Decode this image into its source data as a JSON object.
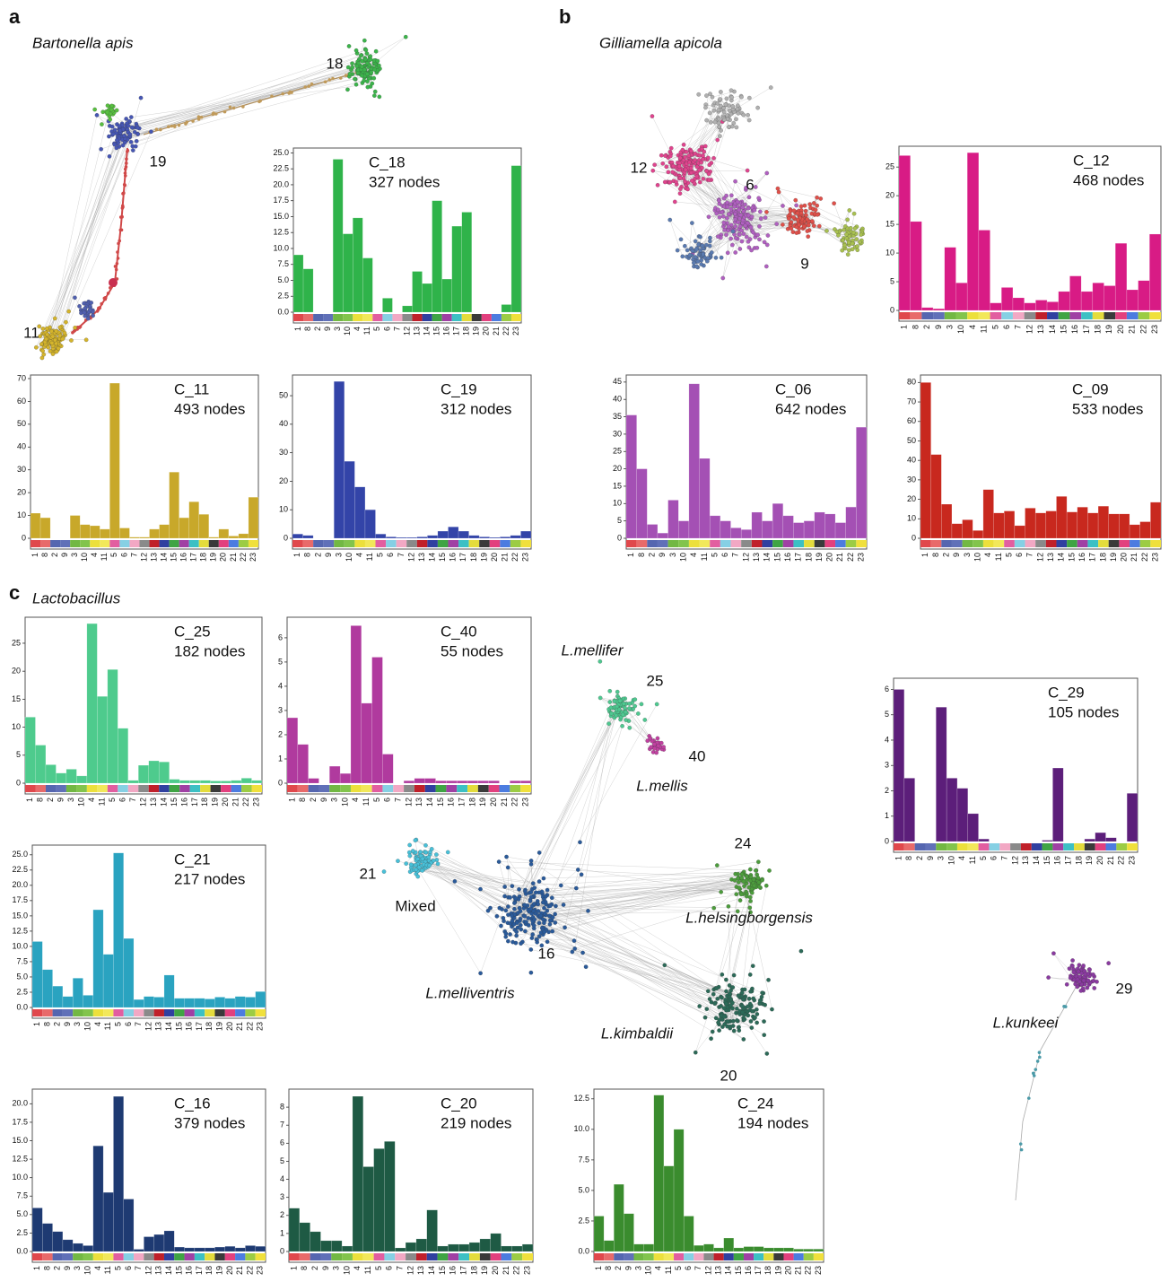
{
  "panels": [
    {
      "letter": "a",
      "title": "Bartonella apis",
      "labels": [
        "18",
        "19",
        "11"
      ]
    },
    {
      "letter": "b",
      "title": "Gilliamella apicola",
      "labels": [
        "12",
        "6",
        "9"
      ]
    },
    {
      "letter": "c",
      "title": "Lactobacillus",
      "labels": [
        "L.mellifer",
        "25",
        "40",
        "L.mellis",
        "24",
        "21",
        "Mixed",
        "L.helsingborgensis",
        "16",
        "L.melliventris",
        "L.kimbaldii",
        "20",
        "L.kunkeei",
        "29"
      ]
    }
  ],
  "category_colors": [
    "#e0484c",
    "#e86a6a",
    "#5566b0",
    "#6070b8",
    "#72b843",
    "#82c44c",
    "#ece03c",
    "#f2e85a",
    "#e25ea0",
    "#86d0e4",
    "#f2a8c4",
    "#8a8a8a",
    "#c0202a",
    "#3040a0",
    "#3fa444",
    "#a040a4",
    "#3cc0c4",
    "#e4dc3c",
    "#3a3a3a",
    "#e2407e",
    "#4c7ce0",
    "#9ccc44",
    "#f0e03c"
  ],
  "chart_data": [
    {
      "type": "bar",
      "title": "C_18",
      "subtitle": "327 nodes",
      "color": "#2fb34a",
      "categories": [
        "1",
        "8",
        "2",
        "9",
        "3",
        "10",
        "4",
        "11",
        "5",
        "6",
        "7",
        "12",
        "13",
        "14",
        "15",
        "16",
        "17",
        "18",
        "19",
        "20",
        "21",
        "22",
        "23"
      ],
      "values": [
        9,
        6.8,
        0,
        0,
        24,
        12.3,
        14.8,
        8.5,
        0,
        2.2,
        0,
        1,
        6.4,
        4.5,
        17.5,
        5.2,
        13.5,
        15.7,
        0,
        0,
        0,
        1.2,
        23
      ],
      "ylim": [
        0,
        25.2
      ],
      "yticks": [
        {
          "value": 0,
          "label": "0.0"
        },
        2.5,
        {
          "value": 5,
          "label": "5.0"
        },
        7.5,
        {
          "value": 10,
          "label": "10.0"
        },
        12.5,
        {
          "value": 15,
          "label": "15.0"
        },
        17.5,
        {
          "value": 20,
          "label": "20.0"
        },
        22.5,
        {
          "value": 25,
          "label": "25.0"
        }
      ]
    },
    {
      "type": "bar",
      "title": "C_11",
      "subtitle": "493 nodes",
      "color": "#c8a82a",
      "categories": [
        "1",
        "8",
        "2",
        "9",
        "3",
        "10",
        "4",
        "11",
        "5",
        "6",
        "7",
        "12",
        "13",
        "14",
        "15",
        "16",
        "17",
        "18",
        "19",
        "20",
        "21",
        "22",
        "23"
      ],
      "values": [
        11,
        9,
        0,
        0,
        10,
        6,
        5.5,
        4,
        68,
        4.5,
        0.5,
        0.5,
        4,
        6,
        29,
        9,
        16,
        10.5,
        0.5,
        4,
        1,
        2,
        18
      ],
      "ylim": [
        0,
        70
      ],
      "yticks": [
        0,
        10,
        20,
        30,
        40,
        50,
        60,
        70
      ]
    },
    {
      "type": "bar",
      "title": "C_19",
      "subtitle": "312 nodes",
      "color": "#3344a8",
      "categories": [
        "1",
        "8",
        "2",
        "9",
        "3",
        "10",
        "4",
        "11",
        "5",
        "6",
        "7",
        "12",
        "13",
        "14",
        "15",
        "16",
        "17",
        "18",
        "19",
        "20",
        "21",
        "22",
        "23"
      ],
      "values": [
        1.5,
        1,
        0,
        0,
        55,
        27,
        18,
        10,
        1.5,
        0.5,
        0.3,
        0.3,
        0.5,
        1,
        2.5,
        4,
        2.5,
        1,
        0.5,
        0.3,
        0.5,
        1,
        2.5
      ],
      "ylim": [
        0,
        56
      ],
      "yticks": [
        0,
        10,
        20,
        30,
        40,
        50
      ]
    },
    {
      "type": "bar",
      "title": "C_12",
      "subtitle": "468 nodes",
      "color": "#d81b85",
      "categories": [
        "1",
        "8",
        "2",
        "9",
        "3",
        "10",
        "4",
        "11",
        "5",
        "6",
        "7",
        "12",
        "13",
        "14",
        "15",
        "16",
        "17",
        "18",
        "19",
        "20",
        "21",
        "22",
        "23"
      ],
      "values": [
        27,
        15.5,
        0.5,
        0.3,
        11,
        4.8,
        27.5,
        14,
        1.3,
        4,
        2.2,
        1.3,
        1.8,
        1.5,
        3.3,
        6,
        3.3,
        4.8,
        4.3,
        11.7,
        3.6,
        5.2,
        13.3
      ],
      "ylim": [
        0,
        28
      ],
      "yticks": [
        0,
        5,
        10,
        15,
        20,
        25
      ]
    },
    {
      "type": "bar",
      "title": "C_06",
      "subtitle": "642 nodes",
      "color": "#a450b4",
      "categories": [
        "1",
        "8",
        "2",
        "9",
        "3",
        "10",
        "4",
        "11",
        "5",
        "6",
        "7",
        "12",
        "13",
        "14",
        "15",
        "16",
        "17",
        "18",
        "19",
        "20",
        "21",
        "22",
        "23"
      ],
      "values": [
        35.5,
        20,
        4,
        1.5,
        11,
        5,
        44.5,
        23,
        6.5,
        5,
        3,
        2.5,
        7.5,
        5,
        10,
        6.5,
        4.5,
        5,
        7.5,
        7,
        4.5,
        9,
        32
      ],
      "ylim": [
        0,
        46
      ],
      "yticks": [
        0,
        5,
        10,
        15,
        20,
        25,
        30,
        35,
        40,
        45
      ]
    },
    {
      "type": "bar",
      "title": "C_09",
      "subtitle": "533 nodes",
      "color": "#c8281e",
      "categories": [
        "1",
        "8",
        "2",
        "9",
        "3",
        "10",
        "4",
        "11",
        "5",
        "6",
        "7",
        "12",
        "13",
        "14",
        "15",
        "16",
        "17",
        "18",
        "19",
        "20",
        "21",
        "22",
        "23"
      ],
      "values": [
        80,
        43,
        17.5,
        7.5,
        9.5,
        4,
        25,
        13,
        14,
        6.5,
        15.5,
        13,
        14,
        21.5,
        13.5,
        16,
        13,
        16.5,
        12.5,
        12.5,
        7,
        8.5,
        18.5
      ],
      "ylim": [
        0,
        82
      ],
      "yticks": [
        0,
        10,
        20,
        30,
        40,
        50,
        60,
        70,
        80
      ]
    },
    {
      "type": "bar",
      "title": "C_25",
      "subtitle": "182 nodes",
      "color": "#4ecb8d",
      "categories": [
        "1",
        "8",
        "2",
        "9",
        "3",
        "10",
        "4",
        "11",
        "5",
        "6",
        "7",
        "12",
        "13",
        "14",
        "15",
        "16",
        "17",
        "18",
        "19",
        "20",
        "21",
        "22",
        "23"
      ],
      "values": [
        11.8,
        6.8,
        3.3,
        1.8,
        2.5,
        1.3,
        28.5,
        15.5,
        20.3,
        9.8,
        0.5,
        3.2,
        4,
        3.8,
        0.7,
        0.5,
        0.5,
        0.5,
        0.4,
        0.4,
        0.5,
        0.9,
        0.5
      ],
      "ylim": [
        0,
        29
      ],
      "yticks": [
        0,
        5,
        10,
        15,
        20,
        25
      ]
    },
    {
      "type": "bar",
      "title": "C_40",
      "subtitle": "55 nodes",
      "color": "#b03a9e",
      "categories": [
        "1",
        "8",
        "2",
        "9",
        "3",
        "10",
        "4",
        "11",
        "5",
        "6",
        "7",
        "12",
        "13",
        "14",
        "15",
        "16",
        "17",
        "18",
        "19",
        "20",
        "21",
        "22",
        "23"
      ],
      "values": [
        2.7,
        1.6,
        0.2,
        0,
        0.7,
        0.4,
        6.5,
        3.3,
        5.2,
        1.2,
        0,
        0.1,
        0.2,
        0.2,
        0.1,
        0.1,
        0.1,
        0.1,
        0.1,
        0.1,
        0,
        0.1,
        0.1
      ],
      "ylim": [
        0,
        6.7
      ],
      "yticks": [
        0,
        1,
        2,
        3,
        4,
        5,
        6
      ]
    },
    {
      "type": "bar",
      "title": "C_21",
      "subtitle": "217 nodes",
      "color": "#2aa3c0",
      "categories": [
        "1",
        "8",
        "2",
        "9",
        "3",
        "10",
        "4",
        "11",
        "5",
        "6",
        "7",
        "12",
        "13",
        "14",
        "15",
        "16",
        "17",
        "18",
        "19",
        "20",
        "21",
        "22",
        "23"
      ],
      "values": [
        10.8,
        6.2,
        3.5,
        1.8,
        4.8,
        2,
        16,
        8.7,
        25.3,
        11.3,
        1.3,
        1.8,
        1.7,
        5.3,
        1.5,
        1.5,
        1.5,
        1.4,
        1.7,
        1.5,
        1.8,
        1.7,
        2.6
      ],
      "ylim": [
        0,
        26
      ],
      "yticks": [
        {
          "value": 0,
          "label": "0.0"
        },
        2.5,
        {
          "value": 5,
          "label": "5.0"
        },
        7.5,
        {
          "value": 10,
          "label": "10.0"
        },
        12.5,
        {
          "value": 15,
          "label": "15.0"
        },
        17.5,
        {
          "value": 20,
          "label": "20.0"
        },
        22.5,
        {
          "value": 25,
          "label": "25.0"
        }
      ]
    },
    {
      "type": "bar",
      "title": "C_29",
      "subtitle": "105 nodes",
      "color": "#5c1e7a",
      "categories": [
        "1",
        "8",
        "2",
        "9",
        "3",
        "10",
        "4",
        "11",
        "5",
        "6",
        "7",
        "12",
        "13",
        "14",
        "15",
        "16",
        "17",
        "18",
        "19",
        "20",
        "21",
        "22",
        "23"
      ],
      "values": [
        6,
        2.5,
        0,
        0,
        5.3,
        2.5,
        2.1,
        1.1,
        0.1,
        0,
        0,
        0,
        0,
        0,
        0.05,
        2.9,
        0,
        0,
        0.1,
        0.35,
        0.15,
        0,
        1.9
      ],
      "ylim": [
        0,
        6.3
      ],
      "yticks": [
        0,
        1,
        2,
        3,
        4,
        5,
        6
      ]
    },
    {
      "type": "bar",
      "title": "C_16",
      "subtitle": "379 nodes",
      "color": "#1e3a72",
      "categories": [
        "1",
        "8",
        "2",
        "9",
        "3",
        "10",
        "4",
        "11",
        "5",
        "6",
        "7",
        "12",
        "13",
        "14",
        "15",
        "16",
        "17",
        "18",
        "19",
        "20",
        "21",
        "22",
        "23"
      ],
      "values": [
        5.9,
        3.8,
        2.7,
        1.6,
        1.1,
        0.8,
        14.3,
        8,
        21,
        7.1,
        0.3,
        2,
        2.3,
        2.8,
        0.6,
        0.5,
        0.5,
        0.5,
        0.6,
        0.7,
        0.5,
        0.8,
        0.7
      ],
      "ylim": [
        0,
        21.5
      ],
      "yticks": [
        {
          "value": 0,
          "label": "0.0"
        },
        2.5,
        {
          "value": 5,
          "label": "5.0"
        },
        7.5,
        {
          "value": 10,
          "label": "10.0"
        },
        12.5,
        {
          "value": 15,
          "label": "15.0"
        },
        17.5,
        {
          "value": 20,
          "label": "20.0"
        }
      ]
    },
    {
      "type": "bar",
      "title": "C_20",
      "subtitle": "219 nodes",
      "color": "#1e5a44",
      "categories": [
        "1",
        "8",
        "2",
        "9",
        "3",
        "10",
        "4",
        "11",
        "5",
        "6",
        "7",
        "12",
        "13",
        "14",
        "15",
        "16",
        "17",
        "18",
        "19",
        "20",
        "21",
        "22",
        "23"
      ],
      "values": [
        2.4,
        1.6,
        1.1,
        0.6,
        0.6,
        0.3,
        8.6,
        4.7,
        5.7,
        6.1,
        0.2,
        0.5,
        0.7,
        2.3,
        0.3,
        0.4,
        0.4,
        0.5,
        0.7,
        1,
        0.3,
        0.3,
        0.4
      ],
      "ylim": [
        0,
        8.8
      ],
      "yticks": [
        0,
        1,
        2,
        3,
        4,
        5,
        6,
        7,
        8
      ]
    },
    {
      "type": "bar",
      "title": "C_24",
      "subtitle": "194 nodes",
      "color": "#3a8c2e",
      "categories": [
        "1",
        "8",
        "2",
        "9",
        "3",
        "10",
        "4",
        "11",
        "5",
        "6",
        "7",
        "12",
        "13",
        "14",
        "15",
        "16",
        "17",
        "18",
        "19",
        "20",
        "21",
        "22",
        "23"
      ],
      "values": [
        2.9,
        0.9,
        5.5,
        3.1,
        0.6,
        0.6,
        12.8,
        7,
        10,
        2.9,
        0.5,
        0.6,
        0.3,
        1.1,
        0.3,
        0.4,
        0.4,
        0.3,
        0.3,
        0.3,
        0.2,
        0.2,
        0.2
      ],
      "ylim": [
        0,
        13
      ],
      "yticks": [
        {
          "value": 0,
          "label": "0.0"
        },
        2.5,
        {
          "value": 5,
          "label": "5.0"
        },
        7.5,
        {
          "value": 10,
          "label": "10.0"
        },
        12.5
      ]
    }
  ]
}
